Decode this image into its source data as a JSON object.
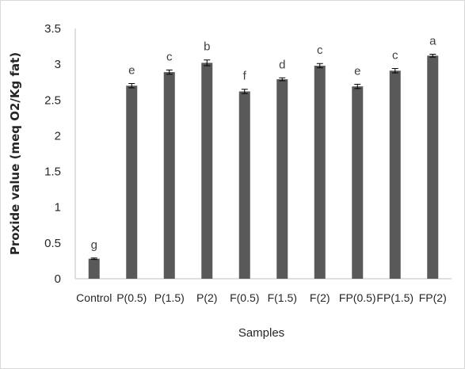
{
  "chart_data": {
    "type": "bar",
    "title": "",
    "xlabel": "Samples",
    "ylabel": "Proxide value (meq O2/Kg fat)",
    "ylim": [
      0,
      3.5
    ],
    "yticks": [
      "0",
      "0.5",
      "1",
      "1.5",
      "2",
      "2.5",
      "3",
      "3.5"
    ],
    "categories": [
      "Control",
      "P(0.5)",
      "P(1.5)",
      "P(2)",
      "F(0.5)",
      "F(1.5)",
      "F(2)",
      "FP(0.5)",
      "FP(1.5)",
      "FP(2)"
    ],
    "values": [
      0.28,
      2.7,
      2.89,
      3.02,
      2.62,
      2.79,
      2.98,
      2.69,
      2.91,
      3.12
    ],
    "errors": [
      0.01,
      0.03,
      0.03,
      0.04,
      0.03,
      0.02,
      0.03,
      0.03,
      0.03,
      0.02
    ],
    "significance_letters": [
      "g",
      "e",
      "c",
      "b",
      "f",
      "d",
      "c",
      "e",
      "c",
      "a"
    ],
    "bar_color": "#595959",
    "grid": false,
    "legend": "none"
  }
}
